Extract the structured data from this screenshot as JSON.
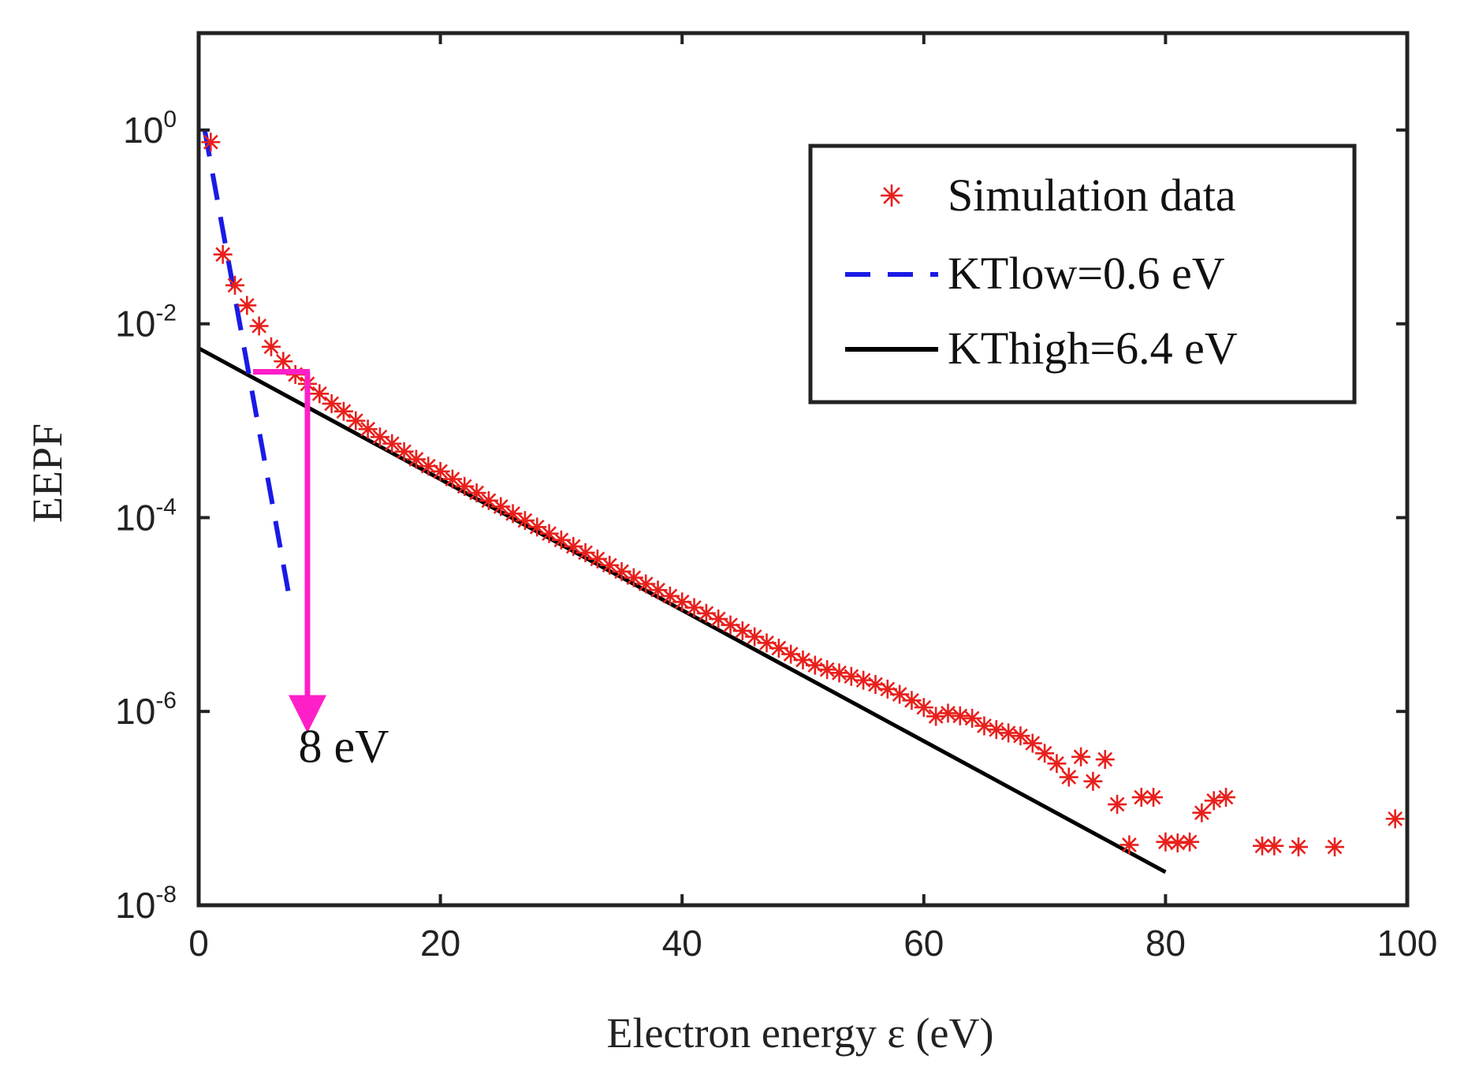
{
  "chart_data": {
    "type": "scatter",
    "title": "",
    "xlabel": "Electron energy ε (eV)",
    "ylabel": "EEPF",
    "xlim": [
      0,
      100
    ],
    "ylim_exponent": [
      -8,
      1
    ],
    "y_scale": "log",
    "grid": false,
    "legend_position": "top-right",
    "x_ticks": [
      {
        "value": 0,
        "label": "0"
      },
      {
        "value": 20,
        "label": "20"
      },
      {
        "value": 40,
        "label": "40"
      },
      {
        "value": 60,
        "label": "60"
      },
      {
        "value": 80,
        "label": "80"
      },
      {
        "value": 100,
        "label": "100"
      }
    ],
    "y_ticks": [
      {
        "exp": 0,
        "base": "10",
        "sup": "0"
      },
      {
        "exp": -2,
        "base": "10",
        "sup": "-2"
      },
      {
        "exp": -4,
        "base": "10",
        "sup": "-4"
      },
      {
        "exp": -6,
        "base": "10",
        "sup": "-6"
      },
      {
        "exp": -8,
        "base": "10",
        "sup": "-8"
      }
    ],
    "series": [
      {
        "name": "Simulation data",
        "style": "markers",
        "marker": "asterisk",
        "color": "#e8201c",
        "x": [
          1,
          2,
          3,
          4,
          5,
          6,
          7,
          8,
          9,
          10,
          11,
          12,
          13,
          14,
          15,
          16,
          17,
          18,
          19,
          20,
          21,
          22,
          23,
          24,
          25,
          26,
          27,
          28,
          29,
          30,
          31,
          32,
          33,
          34,
          35,
          36,
          37,
          38,
          39,
          40,
          41,
          42,
          43,
          44,
          45,
          46,
          47,
          48,
          49,
          50,
          51,
          52,
          53,
          54,
          55,
          56,
          57,
          58,
          59,
          60,
          61,
          62,
          63,
          64,
          65,
          66,
          67,
          68,
          69,
          70,
          71,
          72,
          73,
          74,
          75,
          76,
          77,
          78,
          79,
          80,
          81,
          82,
          83,
          84,
          85,
          88,
          89,
          91,
          94,
          99
        ],
        "y": [
          0.75,
          0.052,
          0.025,
          0.0155,
          0.0095,
          0.0058,
          0.0041,
          0.003,
          0.0024,
          0.0019,
          0.0015,
          0.00125,
          0.001,
          0.00082,
          0.00068,
          0.00058,
          0.00048,
          0.0004,
          0.00034,
          0.0003,
          0.00025,
          0.00021,
          0.00018,
          0.00015,
          0.00013,
          0.00011,
          9.35e-05,
          8e-05,
          6.85e-05,
          5.88e-05,
          5.05e-05,
          4.35e-05,
          3.75e-05,
          3.23e-05,
          2.78e-05,
          2.4e-05,
          2.07e-05,
          1.79e-05,
          1.55e-05,
          1.35e-05,
          1.18e-05,
          1.03e-05,
          9e-06,
          7.8e-06,
          6.8e-06,
          5.9e-06,
          5.1e-06,
          4.5e-06,
          3.9e-06,
          3.4e-06,
          3e-06,
          2.7e-06,
          2.5e-06,
          2.3e-06,
          2.1e-06,
          1.9e-06,
          1.7e-06,
          1.5e-06,
          1.3e-06,
          1.1e-06,
          8.9e-07,
          9.6e-07,
          9e-07,
          8.5e-07,
          7.1e-07,
          6.5e-07,
          6e-07,
          5.6e-07,
          4.7e-07,
          3.7e-07,
          2.9e-07,
          2.1e-07,
          3.4e-07,
          1.9e-07,
          3.2e-07,
          1.1e-07,
          4.2e-08,
          1.3e-07,
          1.3e-07,
          4.5e-08,
          4.4e-08,
          4.5e-08,
          9e-08,
          1.2e-07,
          1.3e-07,
          4.1e-08,
          4.1e-08,
          4e-08,
          4e-08,
          7.8e-08
        ]
      },
      {
        "name": "KTlow=0.6 eV",
        "style": "dashed",
        "color": "#1a1ae6",
        "x": [
          0.5,
          7.5
        ],
        "y": [
          1.0,
          1.5e-05
        ]
      },
      {
        "name": "KThigh=6.4 eV",
        "style": "solid",
        "color": "#000000",
        "x": [
          0,
          80
        ],
        "y": [
          0.0056,
          2.2e-08
        ]
      }
    ],
    "annotation": {
      "text": "8 eV",
      "color": "#ff1fc8",
      "bracket_x_start": 4.5,
      "arrow_x": 9,
      "y_top": 0.0032,
      "y_arrow_tip": 6e-07,
      "text_x": 12,
      "text_y": 3e-07
    }
  }
}
